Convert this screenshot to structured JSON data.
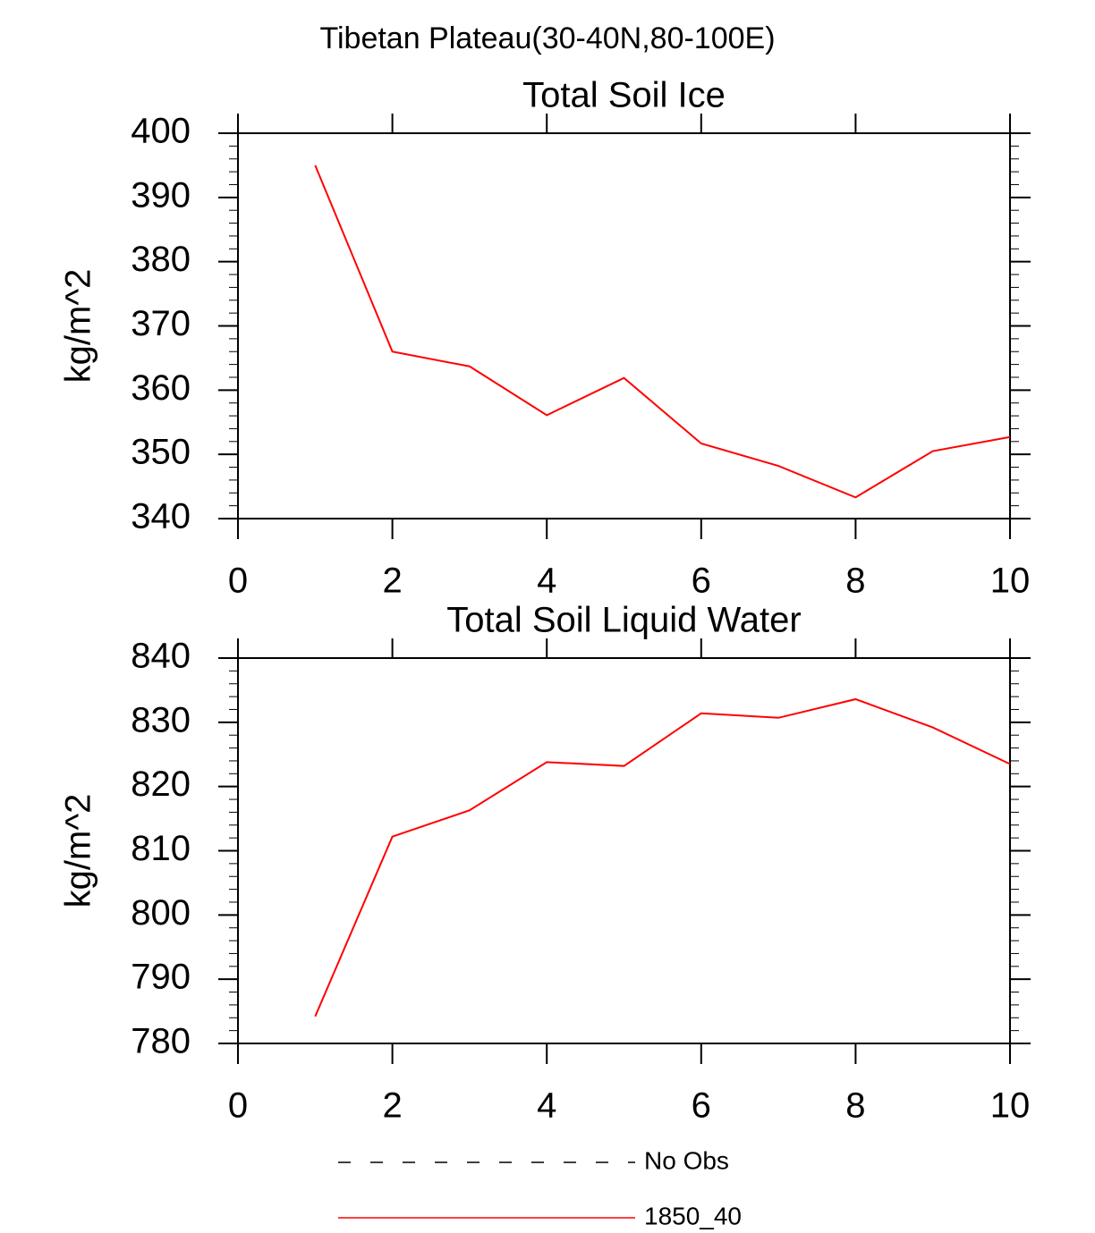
{
  "title": "Tibetan Plateau(30-40N,80-100E)",
  "chart_data": [
    {
      "type": "line",
      "title": "Total Soil Ice",
      "y_label": "kg/m^2",
      "x": [
        1,
        2,
        3,
        4,
        5,
        6,
        7,
        8,
        9,
        10
      ],
      "series": [
        {
          "color": "#ff0000",
          "values": [
            395,
            366,
            363.7,
            356.1,
            361.9,
            351.7,
            348.2,
            343.3,
            350.5,
            352.7
          ]
        }
      ],
      "xlim": [
        0,
        10
      ],
      "xticks": [
        0,
        2,
        4,
        6,
        8,
        10
      ],
      "ylim": [
        340,
        400
      ],
      "yticks": [
        340,
        350,
        360,
        370,
        380,
        390,
        400
      ]
    },
    {
      "type": "line",
      "title": "Total Soil Liquid Water",
      "y_label": "kg/m^2",
      "x": [
        1,
        2,
        3,
        4,
        5,
        6,
        7,
        8,
        9,
        10
      ],
      "series": [
        {
          "color": "#ff0000",
          "values": [
            784.2,
            812.2,
            816.3,
            823.8,
            823.2,
            831.4,
            830.7,
            833.6,
            829.2,
            823.5
          ]
        }
      ],
      "xlim": [
        0,
        10
      ],
      "xticks": [
        0,
        2,
        4,
        6,
        8,
        10
      ],
      "ylim": [
        780,
        840
      ],
      "yticks": [
        780,
        790,
        800,
        810,
        820,
        830,
        840
      ]
    }
  ],
  "legend": [
    {
      "label": "No Obs",
      "color": "#000000",
      "style": "dashed"
    },
    {
      "label": "1850_40",
      "color": "#ff0000",
      "style": "solid"
    }
  ]
}
